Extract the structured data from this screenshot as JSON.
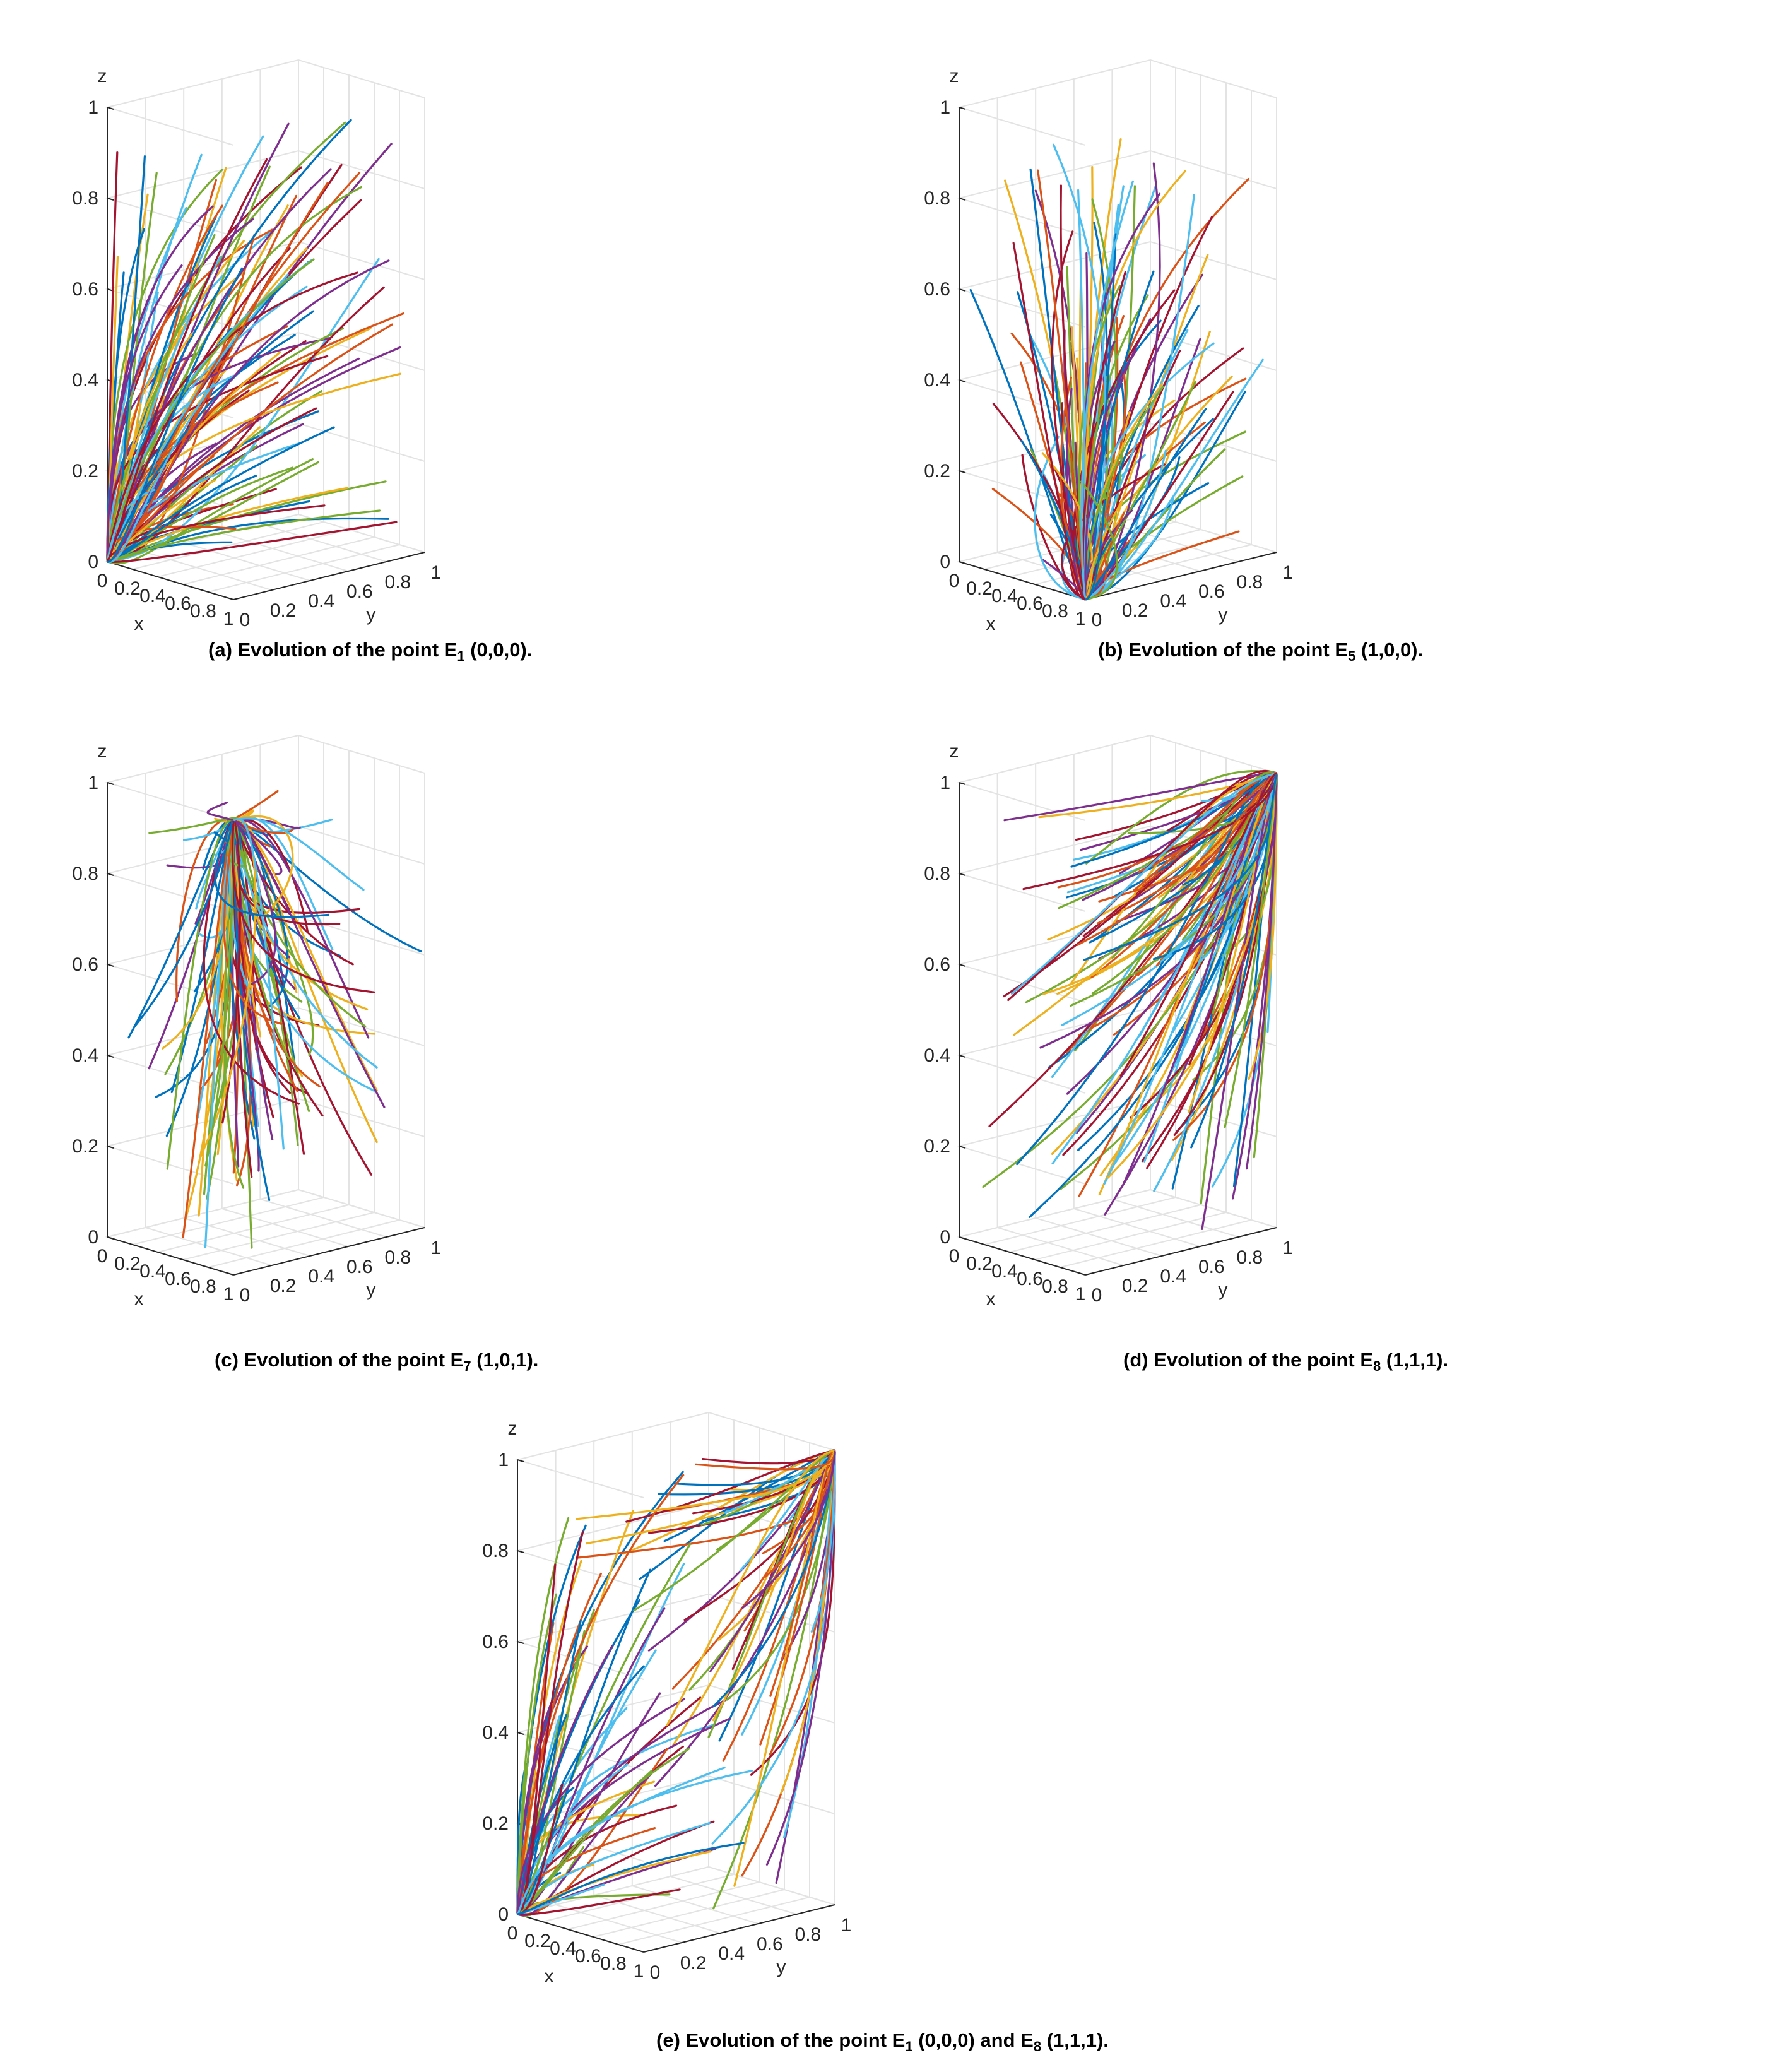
{
  "chart_data": [
    {
      "id": "a",
      "type": "line",
      "title": "(a) Evolution of the point E",
      "title_sub": "1",
      "title_tail": " (0,0,0).",
      "xlabel": "x",
      "ylabel": "y",
      "zlabel": "z",
      "xlim": [
        0,
        1
      ],
      "ylim": [
        0,
        1
      ],
      "zlim": [
        0,
        1
      ],
      "x_ticks": [
        "0",
        "0.2",
        "0.4",
        "0.6",
        "0.8",
        "1"
      ],
      "y_ticks": [
        "0",
        "0.2",
        "0.4",
        "0.6",
        "0.8",
        "1"
      ],
      "z_ticks": [
        "0",
        "0.2",
        "0.4",
        "0.6",
        "0.8",
        "1"
      ],
      "grid": true,
      "attractors": [
        [
          0,
          0,
          0
        ]
      ],
      "trajectory_count": 120
    },
    {
      "id": "b",
      "type": "line",
      "title": "(b) Evolution of the point E",
      "title_sub": "5",
      "title_tail": " (1,0,0).",
      "xlabel": "x",
      "ylabel": "y",
      "zlabel": "z",
      "xlim": [
        0,
        1
      ],
      "ylim": [
        0,
        1
      ],
      "zlim": [
        0,
        1
      ],
      "x_ticks": [
        "0",
        "0.2",
        "0.4",
        "0.6",
        "0.8",
        "1"
      ],
      "y_ticks": [
        "0",
        "0.2",
        "0.4",
        "0.6",
        "0.8",
        "1"
      ],
      "z_ticks": [
        "0",
        "0.2",
        "0.4",
        "0.6",
        "0.8",
        "1"
      ],
      "grid": true,
      "attractors": [
        [
          1,
          0,
          0
        ]
      ],
      "trajectory_count": 120
    },
    {
      "id": "c",
      "type": "line",
      "title": "(c) Evolution of the point E",
      "title_sub": "7",
      "title_tail": " (1,0,1).",
      "xlabel": "x",
      "ylabel": "y",
      "zlabel": "z",
      "xlim": [
        0,
        1
      ],
      "ylim": [
        0,
        1
      ],
      "zlim": [
        0,
        1
      ],
      "x_ticks": [
        "0",
        "0.2",
        "0.4",
        "0.6",
        "0.8",
        "1"
      ],
      "y_ticks": [
        "0",
        "0.2",
        "0.4",
        "0.6",
        "0.8",
        "1"
      ],
      "z_ticks": [
        "0",
        "0.2",
        "0.4",
        "0.6",
        "0.8",
        "1"
      ],
      "grid": true,
      "attractors": [
        [
          1,
          0,
          1
        ]
      ],
      "trajectory_count": 120
    },
    {
      "id": "d",
      "type": "line",
      "title": "(d) Evolution of the point E",
      "title_sub": "8",
      "title_tail": " (1,1,1).",
      "xlabel": "x",
      "ylabel": "y",
      "zlabel": "z",
      "xlim": [
        0,
        1
      ],
      "ylim": [
        0,
        1
      ],
      "zlim": [
        0,
        1
      ],
      "x_ticks": [
        "0",
        "0.2",
        "0.4",
        "0.6",
        "0.8",
        "1"
      ],
      "y_ticks": [
        "0",
        "0.2",
        "0.4",
        "0.6",
        "0.8",
        "1"
      ],
      "z_ticks": [
        "0",
        "0.2",
        "0.4",
        "0.6",
        "0.8",
        "1"
      ],
      "grid": true,
      "attractors": [
        [
          1,
          1,
          1
        ]
      ],
      "trajectory_count": 120
    },
    {
      "id": "e",
      "type": "line",
      "title": "(e) Evolution of the point E",
      "title_sub": "1",
      "title_mid": " (0,0,0) and E",
      "title_sub2": "8",
      "title_tail": " (1,1,1).",
      "xlabel": "x",
      "ylabel": "y",
      "zlabel": "z",
      "xlim": [
        0,
        1
      ],
      "ylim": [
        0,
        1
      ],
      "zlim": [
        0,
        1
      ],
      "x_ticks": [
        "0",
        "0.2",
        "0.4",
        "0.6",
        "0.8",
        "1"
      ],
      "y_ticks": [
        "0",
        "0.2",
        "0.4",
        "0.6",
        "0.8",
        "1"
      ],
      "z_ticks": [
        "0",
        "0.2",
        "0.4",
        "0.6",
        "0.8",
        "1"
      ],
      "grid": true,
      "attractors": [
        [
          0,
          0,
          0
        ],
        [
          1,
          1,
          1
        ]
      ],
      "trajectory_count": 120
    }
  ],
  "colors": [
    "#0072BD",
    "#D95319",
    "#EDB120",
    "#7E2F8E",
    "#77AC30",
    "#4DBEEE",
    "#A2142F"
  ]
}
